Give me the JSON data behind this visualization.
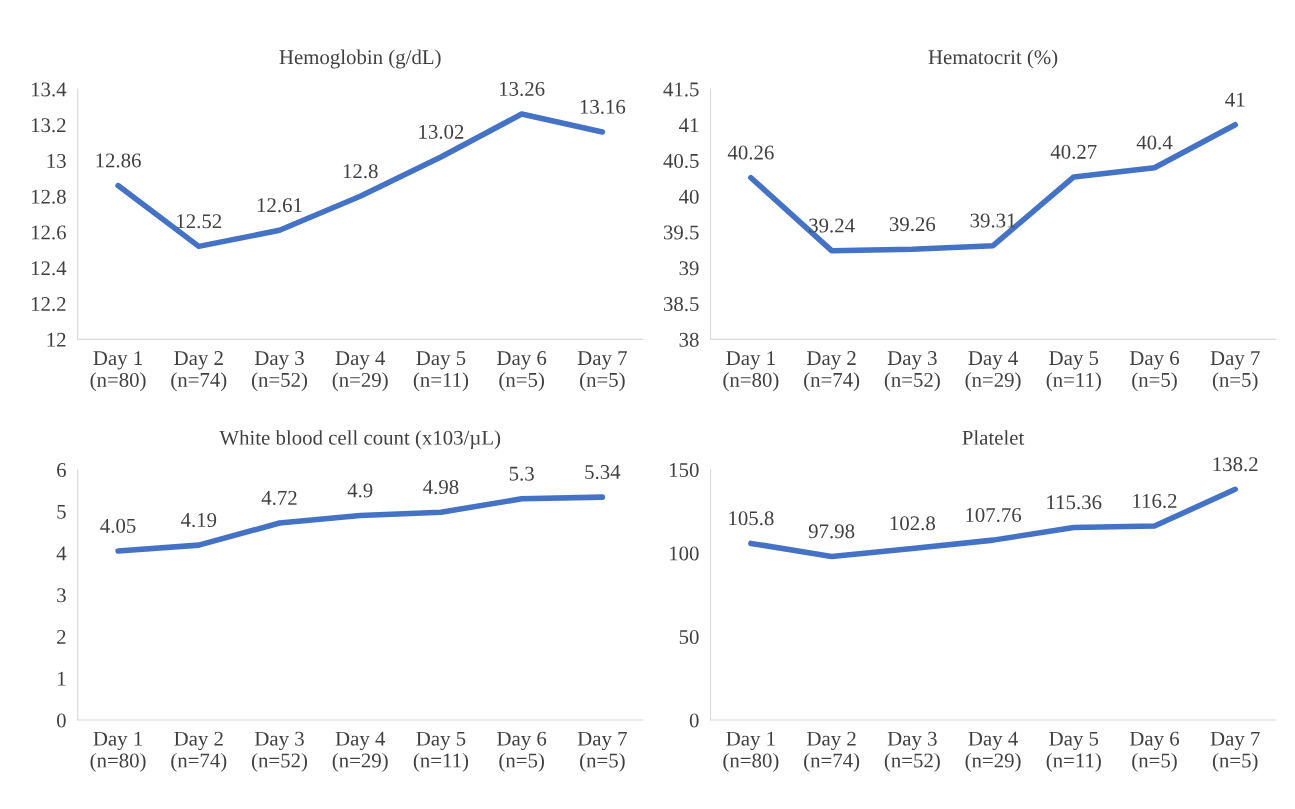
{
  "chart_data": [
    {
      "type": "line",
      "title": "Hemoglobin (g/dL)",
      "categories": [
        "Day 1\n(n=80)",
        "Day 2\n(n=74)",
        "Day 3\n(n=52)",
        "Day 4\n(n=29)",
        "Day 5\n(n=11)",
        "Day 6\n(n=5)",
        "Day 7\n(n=5)"
      ],
      "series": [
        {
          "color": "#4472c4",
          "values": [
            12.86,
            12.52,
            12.61,
            12.8,
            13.02,
            13.26,
            13.16
          ]
        }
      ],
      "ylim": [
        12,
        13.4
      ],
      "yticks": [
        12,
        12.2,
        12.4,
        12.6,
        12.8,
        13,
        13.2,
        13.4
      ],
      "data_labels": true,
      "grid": false,
      "marker": "none",
      "line_style": "solid"
    },
    {
      "type": "line",
      "title": "Hematocrit (%)",
      "categories": [
        "Day 1\n(n=80)",
        "Day 2\n(n=74)",
        "Day 3\n(n=52)",
        "Day 4\n(n=29)",
        "Day 5\n(n=11)",
        "Day 6\n(n=5)",
        "Day 7\n(n=5)"
      ],
      "series": [
        {
          "color": "#4472c4",
          "values": [
            40.26,
            39.24,
            39.26,
            39.31,
            40.27,
            40.4,
            41
          ]
        }
      ],
      "ylim": [
        38,
        41.5
      ],
      "yticks": [
        38,
        38.5,
        39,
        39.5,
        40,
        40.5,
        41,
        41.5
      ],
      "data_labels": true,
      "grid": false,
      "marker": "none",
      "line_style": "solid"
    },
    {
      "type": "line",
      "title": "White blood cell count (x103/µL)",
      "categories": [
        "Day 1\n(n=80)",
        "Day 2\n(n=74)",
        "Day 3\n(n=52)",
        "Day 4\n(n=29)",
        "Day 5\n(n=11)",
        "Day 6\n(n=5)",
        "Day 7\n(n=5)"
      ],
      "series": [
        {
          "color": "#4472c4",
          "values": [
            4.05,
            4.19,
            4.72,
            4.9,
            4.98,
            5.3,
            5.34
          ]
        }
      ],
      "ylim": [
        0,
        6
      ],
      "yticks": [
        0,
        1,
        2,
        3,
        4,
        5,
        6
      ],
      "data_labels": true,
      "grid": false,
      "marker": "none",
      "line_style": "solid"
    },
    {
      "type": "line",
      "title": "Platelet",
      "categories": [
        "Day 1\n(n=80)",
        "Day 2\n(n=74)",
        "Day 3\n(n=52)",
        "Day 4\n(n=29)",
        "Day 5\n(n=11)",
        "Day 6\n(n=5)",
        "Day 7\n(n=5)"
      ],
      "series": [
        {
          "color": "#4472c4",
          "values": [
            105.8,
            97.98,
            102.8,
            107.76,
            115.36,
            116.2,
            138.2
          ]
        }
      ],
      "ylim": [
        0,
        150
      ],
      "yticks": [
        0,
        50,
        100,
        150
      ],
      "data_labels": true,
      "grid": false,
      "marker": "none",
      "line_style": "solid"
    }
  ]
}
